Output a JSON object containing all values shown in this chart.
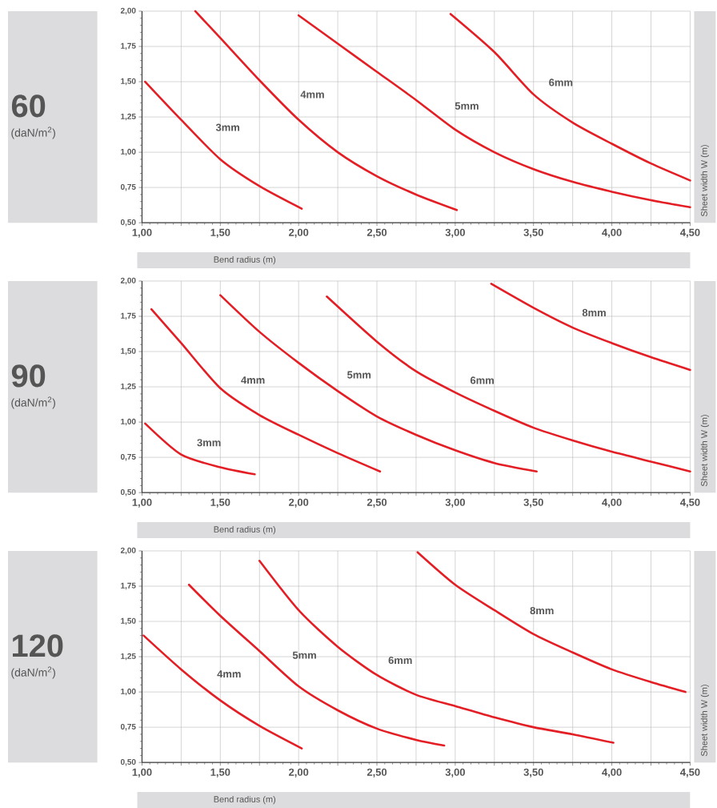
{
  "chart_data": [
    {
      "type": "line",
      "title": "60",
      "subtitle": "(daN/m$^{2}$)",
      "xlabel": "Bend radius (m)",
      "ylabel": "Sheet width W (m)",
      "grid": true,
      "xlim": [
        1.0,
        4.5
      ],
      "ylim": [
        0.5,
        2.0
      ],
      "xticks": [
        {
          "value": 1.0,
          "label": "1,00"
        },
        {
          "value": 1.25,
          "label": null
        },
        {
          "value": 1.5,
          "label": "1,50"
        },
        {
          "value": 1.75,
          "label": null
        },
        {
          "value": 2.0,
          "label": "2,00"
        },
        {
          "value": 2.25,
          "label": null
        },
        {
          "value": 2.5,
          "label": "2,50"
        },
        {
          "value": 2.75,
          "label": null
        },
        {
          "value": 3.0,
          "label": "3,00"
        },
        {
          "value": 3.25,
          "label": null
        },
        {
          "value": 3.5,
          "label": "3,50"
        },
        {
          "value": 3.75,
          "label": null
        },
        {
          "value": 4.0,
          "label": "4,00"
        },
        {
          "value": 4.25,
          "label": null
        },
        {
          "value": 4.5,
          "label": "4,50"
        }
      ],
      "yticks": [
        {
          "value": 0.5,
          "label": "0,50"
        },
        {
          "value": 0.75,
          "label": "0,75"
        },
        {
          "value": 1.0,
          "label": "1,00"
        },
        {
          "value": 1.25,
          "label": "1,25"
        },
        {
          "value": 1.5,
          "label": "1,50"
        },
        {
          "value": 1.75,
          "label": "1,75"
        },
        {
          "value": 2.0,
          "label": "2,00"
        }
      ],
      "series": [
        {
          "name": "3mm",
          "color": "#e31e24",
          "x": [
            1.02,
            1.25,
            1.5,
            1.75,
            2.02
          ],
          "values": [
            1.5,
            1.23,
            0.95,
            0.76,
            0.6
          ]
        },
        {
          "name": "4mm",
          "color": "#e31e24",
          "x": [
            1.34,
            1.5,
            1.75,
            2.0,
            2.25,
            2.5,
            2.75,
            3.01
          ],
          "values": [
            2.0,
            1.81,
            1.51,
            1.23,
            1.0,
            0.83,
            0.7,
            0.59
          ]
        },
        {
          "name": "5mm",
          "color": "#e31e24",
          "x": [
            2.0,
            2.25,
            2.5,
            2.75,
            3.0,
            3.25,
            3.5,
            3.75,
            4.0,
            4.25,
            4.5
          ],
          "values": [
            1.97,
            1.77,
            1.57,
            1.37,
            1.16,
            1.0,
            0.88,
            0.79,
            0.72,
            0.66,
            0.61
          ]
        },
        {
          "name": "6mm",
          "color": "#e31e24",
          "x": [
            2.97,
            3.25,
            3.5,
            3.75,
            4.0,
            4.25,
            4.5
          ],
          "values": [
            1.98,
            1.71,
            1.41,
            1.21,
            1.06,
            0.92,
            0.8
          ]
        }
      ]
    },
    {
      "type": "line",
      "title": "90",
      "subtitle": "(daN/m$^{2}$)",
      "xlabel": "Bend radius (m)",
      "ylabel": "Sheet width W (m)",
      "grid": true,
      "xlim": [
        1.0,
        4.5
      ],
      "ylim": [
        0.5,
        2.0
      ],
      "xticks": [
        {
          "value": 1.0,
          "label": "1,00"
        },
        {
          "value": 1.25,
          "label": null
        },
        {
          "value": 1.5,
          "label": "1,50"
        },
        {
          "value": 1.75,
          "label": null
        },
        {
          "value": 2.0,
          "label": "2,00"
        },
        {
          "value": 2.25,
          "label": null
        },
        {
          "value": 2.5,
          "label": "2,50"
        },
        {
          "value": 2.75,
          "label": null
        },
        {
          "value": 3.0,
          "label": "3,00"
        },
        {
          "value": 3.25,
          "label": null
        },
        {
          "value": 3.5,
          "label": "3,50"
        },
        {
          "value": 3.75,
          "label": null
        },
        {
          "value": 4.0,
          "label": "4,00"
        },
        {
          "value": 4.25,
          "label": null
        },
        {
          "value": 4.5,
          "label": "4,50"
        }
      ],
      "yticks": [
        {
          "value": 0.5,
          "label": "0,50"
        },
        {
          "value": 0.75,
          "label": "0,75"
        },
        {
          "value": 1.0,
          "label": "1,00"
        },
        {
          "value": 1.25,
          "label": "1,25"
        },
        {
          "value": 1.5,
          "label": "1,50"
        },
        {
          "value": 1.75,
          "label": "1,75"
        },
        {
          "value": 2.0,
          "label": "2,00"
        }
      ],
      "series": [
        {
          "name": "3mm",
          "color": "#e31e24",
          "x": [
            1.02,
            1.25,
            1.5,
            1.72
          ],
          "values": [
            0.99,
            0.77,
            0.68,
            0.63
          ]
        },
        {
          "name": "4mm",
          "color": "#e31e24",
          "x": [
            1.06,
            1.25,
            1.5,
            1.75,
            2.0,
            2.25,
            2.52
          ],
          "values": [
            1.8,
            1.56,
            1.24,
            1.05,
            0.91,
            0.78,
            0.65
          ]
        },
        {
          "name": "5mm",
          "color": "#e31e24",
          "x": [
            1.5,
            1.75,
            2.0,
            2.25,
            2.5,
            2.75,
            3.0,
            3.25,
            3.52
          ],
          "values": [
            1.9,
            1.64,
            1.42,
            1.22,
            1.04,
            0.91,
            0.8,
            0.71,
            0.65
          ]
        },
        {
          "name": "6mm",
          "color": "#e31e24",
          "x": [
            2.18,
            2.5,
            2.75,
            3.0,
            3.25,
            3.5,
            3.75,
            4.0,
            4.25,
            4.5
          ],
          "values": [
            1.89,
            1.57,
            1.36,
            1.21,
            1.08,
            0.96,
            0.87,
            0.79,
            0.72,
            0.65
          ]
        },
        {
          "name": "8mm",
          "color": "#e31e24",
          "x": [
            3.23,
            3.5,
            3.75,
            4.0,
            4.25,
            4.5
          ],
          "values": [
            1.98,
            1.81,
            1.67,
            1.56,
            1.46,
            1.37
          ]
        }
      ]
    },
    {
      "type": "line",
      "title": "120",
      "subtitle": "(daN/m$^{2}$)",
      "xlabel": "Bend radius (m)",
      "ylabel": "Sheet width W (m)",
      "grid": true,
      "xlim": [
        1.0,
        4.5
      ],
      "ylim": [
        0.5,
        2.0
      ],
      "xticks": [
        {
          "value": 1.0,
          "label": "1,00"
        },
        {
          "value": 1.25,
          "label": null
        },
        {
          "value": 1.5,
          "label": "1,50"
        },
        {
          "value": 1.75,
          "label": null
        },
        {
          "value": 2.0,
          "label": "2,00"
        },
        {
          "value": 2.25,
          "label": null
        },
        {
          "value": 2.5,
          "label": "2,50"
        },
        {
          "value": 2.75,
          "label": null
        },
        {
          "value": 3.0,
          "label": "3,00"
        },
        {
          "value": 3.25,
          "label": null
        },
        {
          "value": 3.5,
          "label": "3,50"
        },
        {
          "value": 3.75,
          "label": null
        },
        {
          "value": 4.0,
          "label": "4,00"
        },
        {
          "value": 4.25,
          "label": null
        },
        {
          "value": 4.5,
          "label": "4,50"
        }
      ],
      "yticks": [
        {
          "value": 0.5,
          "label": "0,50"
        },
        {
          "value": 0.75,
          "label": "0,75"
        },
        {
          "value": 1.0,
          "label": "1,00"
        },
        {
          "value": 1.25,
          "label": "1,25"
        },
        {
          "value": 1.5,
          "label": "1,50"
        },
        {
          "value": 1.75,
          "label": "1,75"
        },
        {
          "value": 2.0,
          "label": "2,00"
        }
      ],
      "series": [
        {
          "name": "4mm",
          "color": "#e31e24",
          "x": [
            1.01,
            1.25,
            1.5,
            1.75,
            2.02
          ],
          "values": [
            1.4,
            1.16,
            0.94,
            0.76,
            0.6
          ]
        },
        {
          "name": "5mm",
          "color": "#e31e24",
          "x": [
            1.3,
            1.5,
            1.75,
            2.0,
            2.25,
            2.5,
            2.75,
            2.93
          ],
          "values": [
            1.76,
            1.54,
            1.29,
            1.04,
            0.87,
            0.74,
            0.66,
            0.62
          ]
        },
        {
          "name": "6mm",
          "color": "#e31e24",
          "x": [
            1.75,
            2.0,
            2.25,
            2.5,
            2.75,
            3.0,
            3.25,
            3.5,
            3.75,
            4.01
          ],
          "values": [
            1.93,
            1.58,
            1.32,
            1.12,
            0.98,
            0.9,
            0.82,
            0.75,
            0.7,
            0.64
          ]
        },
        {
          "name": "8mm",
          "color": "#e31e24",
          "x": [
            2.76,
            3.0,
            3.25,
            3.5,
            3.75,
            4.0,
            4.25,
            4.47
          ],
          "values": [
            1.99,
            1.76,
            1.58,
            1.41,
            1.28,
            1.16,
            1.07,
            1.0
          ]
        }
      ]
    }
  ]
}
